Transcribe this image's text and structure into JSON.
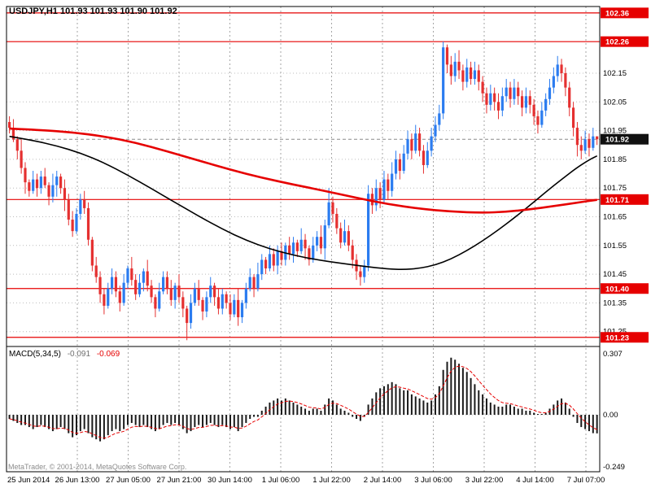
{
  "header": {
    "symbol_info": "USDJPY,H1 101.93 101.93 101.90 101.92"
  },
  "macd_header": {
    "label": "MACD(5,34,5)",
    "main_value": "-0.091",
    "signal_value": "-0.069"
  },
  "footer": {
    "copyright": "MetaTrader, © 2001-2014, MetaQuotes Software Corp."
  },
  "colors": {
    "bull": "#2b7cf0",
    "bear": "#e53030",
    "level_line": "#e60000",
    "ma_red": "#e60000",
    "ma_black": "#000000",
    "signal": "#e60000",
    "histogram": "#1a1a1a",
    "current_price_box": "#111111",
    "grid": "#a6a6a6"
  },
  "chart_data": {
    "type": "candlestick",
    "symbol": "USDJPY",
    "timeframe": "H1",
    "title": "USDJPY,H1",
    "price_axis": {
      "ticks": [
        "102.15",
        "102.05",
        "101.95",
        "101.85",
        "101.75",
        "101.65",
        "101.55",
        "101.45",
        "101.35",
        "101.25"
      ],
      "min": 101.2,
      "max": 102.38
    },
    "levels": [
      "102.36",
      "102.26",
      "101.71",
      "101.40",
      "101.23"
    ],
    "current_price": "101.92",
    "time_axis": [
      "25 Jun 2014",
      "26 Jun 13:00",
      "27 Jun 05:00",
      "27 Jun 21:00",
      "30 Jun 14:00",
      "1 Jul 06:00",
      "1 Jul 22:00",
      "2 Jul 14:00",
      "3 Jul 06:00",
      "3 Jul 22:00",
      "4 Jul 14:00",
      "7 Jul 07:00"
    ],
    "candles": [
      [
        101.98,
        102.0,
        101.94,
        101.96
      ],
      [
        101.96,
        101.99,
        101.91,
        101.92
      ],
      [
        101.92,
        101.93,
        101.85,
        101.88
      ],
      [
        101.88,
        101.92,
        101.8,
        101.82
      ],
      [
        101.82,
        101.84,
        101.73,
        101.77
      ],
      [
        101.77,
        101.78,
        101.72,
        101.74
      ],
      [
        101.74,
        101.81,
        101.73,
        101.78
      ],
      [
        101.78,
        101.8,
        101.72,
        101.75
      ],
      [
        101.75,
        101.81,
        101.73,
        101.79
      ],
      [
        101.79,
        101.82,
        101.75,
        101.76
      ],
      [
        101.76,
        101.77,
        101.69,
        101.72
      ],
      [
        101.72,
        101.8,
        101.7,
        101.76
      ],
      [
        101.76,
        101.81,
        101.72,
        101.79
      ],
      [
        101.79,
        101.8,
        101.73,
        101.75
      ],
      [
        101.75,
        101.78,
        101.67,
        101.71
      ],
      [
        101.71,
        101.73,
        101.62,
        101.64
      ],
      [
        101.64,
        101.67,
        101.58,
        101.6
      ],
      [
        101.6,
        101.68,
        101.59,
        101.66
      ],
      [
        101.66,
        101.73,
        101.64,
        101.71
      ],
      [
        101.71,
        101.74,
        101.66,
        101.68
      ],
      [
        101.68,
        101.7,
        101.55,
        101.57
      ],
      [
        101.57,
        101.58,
        101.46,
        101.48
      ],
      [
        101.48,
        101.51,
        101.42,
        101.44
      ],
      [
        101.44,
        101.46,
        101.35,
        101.38
      ],
      [
        101.38,
        101.4,
        101.31,
        101.34
      ],
      [
        101.34,
        101.42,
        101.33,
        101.4
      ],
      [
        101.4,
        101.47,
        101.38,
        101.44
      ],
      [
        101.44,
        101.46,
        101.37,
        101.39
      ],
      [
        101.39,
        101.41,
        101.32,
        101.35
      ],
      [
        101.35,
        101.45,
        101.34,
        101.42
      ],
      [
        101.42,
        101.48,
        101.4,
        101.47
      ],
      [
        101.47,
        101.51,
        101.41,
        101.43
      ],
      [
        101.43,
        101.45,
        101.36,
        101.38
      ],
      [
        101.38,
        101.45,
        101.37,
        101.42
      ],
      [
        101.42,
        101.47,
        101.39,
        101.46
      ],
      [
        101.46,
        101.5,
        101.39,
        101.41
      ],
      [
        101.41,
        101.43,
        101.35,
        101.37
      ],
      [
        101.37,
        101.38,
        101.3,
        101.33
      ],
      [
        101.33,
        101.42,
        101.32,
        101.39
      ],
      [
        101.39,
        101.46,
        101.38,
        101.44
      ],
      [
        101.44,
        101.46,
        101.38,
        101.4
      ],
      [
        101.4,
        101.43,
        101.34,
        101.36
      ],
      [
        101.36,
        101.42,
        101.33,
        101.41
      ],
      [
        101.41,
        101.45,
        101.35,
        101.37
      ],
      [
        101.37,
        101.39,
        101.3,
        101.33
      ],
      [
        101.33,
        101.34,
        101.22,
        101.28
      ],
      [
        101.28,
        101.38,
        101.26,
        101.35
      ],
      [
        101.35,
        101.42,
        101.34,
        101.4
      ],
      [
        101.4,
        101.43,
        101.34,
        101.36
      ],
      [
        101.36,
        101.37,
        101.29,
        101.32
      ],
      [
        101.32,
        101.39,
        101.3,
        101.37
      ],
      [
        101.37,
        101.44,
        101.35,
        101.41
      ],
      [
        101.41,
        101.42,
        101.34,
        101.37
      ],
      [
        101.37,
        101.4,
        101.31,
        101.33
      ],
      [
        101.33,
        101.4,
        101.31,
        101.38
      ],
      [
        101.38,
        101.39,
        101.33,
        101.35
      ],
      [
        101.35,
        101.38,
        101.29,
        101.31
      ],
      [
        101.31,
        101.38,
        101.3,
        101.36
      ],
      [
        101.36,
        101.4,
        101.27,
        101.3
      ],
      [
        101.3,
        101.36,
        101.28,
        101.35
      ],
      [
        101.35,
        101.42,
        101.33,
        101.4
      ],
      [
        101.4,
        101.47,
        101.39,
        101.44
      ],
      [
        101.44,
        101.45,
        101.37,
        101.4
      ],
      [
        101.4,
        101.49,
        101.39,
        101.45
      ],
      [
        101.45,
        101.52,
        101.43,
        101.5
      ],
      [
        101.5,
        101.51,
        101.45,
        101.47
      ],
      [
        101.47,
        101.55,
        101.46,
        101.52
      ],
      [
        101.52,
        101.54,
        101.46,
        101.48
      ],
      [
        101.48,
        101.55,
        101.45,
        101.53
      ],
      [
        101.53,
        101.56,
        101.48,
        101.5
      ],
      [
        101.5,
        101.56,
        101.48,
        101.55
      ],
      [
        101.55,
        101.58,
        101.5,
        101.52
      ],
      [
        101.52,
        101.58,
        101.49,
        101.56
      ],
      [
        101.56,
        101.57,
        101.51,
        101.53
      ],
      [
        101.53,
        101.61,
        101.52,
        101.57
      ],
      [
        101.57,
        101.59,
        101.5,
        101.54
      ],
      [
        101.54,
        101.55,
        101.48,
        101.5
      ],
      [
        101.5,
        101.58,
        101.49,
        101.55
      ],
      [
        101.55,
        101.6,
        101.53,
        101.58
      ],
      [
        101.58,
        101.62,
        101.52,
        101.54
      ],
      [
        101.54,
        101.64,
        101.5,
        101.62
      ],
      [
        101.62,
        101.75,
        101.61,
        101.7
      ],
      [
        101.7,
        101.72,
        101.63,
        101.66
      ],
      [
        101.66,
        101.68,
        101.59,
        101.61
      ],
      [
        101.61,
        101.63,
        101.54,
        101.56
      ],
      [
        101.56,
        101.64,
        101.55,
        101.6
      ],
      [
        101.6,
        101.62,
        101.53,
        101.55
      ],
      [
        101.55,
        101.57,
        101.47,
        101.5
      ],
      [
        101.5,
        101.52,
        101.43,
        101.46
      ],
      [
        101.46,
        101.48,
        101.41,
        101.44
      ],
      [
        101.44,
        101.5,
        101.42,
        101.48
      ],
      [
        101.48,
        101.76,
        101.46,
        101.73
      ],
      [
        101.73,
        101.75,
        101.66,
        101.69
      ],
      [
        101.69,
        101.78,
        101.67,
        101.75
      ],
      [
        101.75,
        101.77,
        101.68,
        101.71
      ],
      [
        101.71,
        101.81,
        101.7,
        101.78
      ],
      [
        101.78,
        101.8,
        101.71,
        101.74
      ],
      [
        101.74,
        101.84,
        101.72,
        101.8
      ],
      [
        101.8,
        101.88,
        101.78,
        101.85
      ],
      [
        101.85,
        101.87,
        101.78,
        101.81
      ],
      [
        101.81,
        101.9,
        101.8,
        101.87
      ],
      [
        101.87,
        101.95,
        101.85,
        101.92
      ],
      [
        101.92,
        101.94,
        101.85,
        101.88
      ],
      [
        101.88,
        101.97,
        101.87,
        101.94
      ],
      [
        101.94,
        101.96,
        101.86,
        101.88
      ],
      [
        101.88,
        101.9,
        101.8,
        101.83
      ],
      [
        101.83,
        101.91,
        101.82,
        101.88
      ],
      [
        101.88,
        101.96,
        101.86,
        101.93
      ],
      [
        101.93,
        102.0,
        101.91,
        101.97
      ],
      [
        101.97,
        102.04,
        101.95,
        102.01
      ],
      [
        102.01,
        102.26,
        101.99,
        102.24
      ],
      [
        102.24,
        102.25,
        102.15,
        102.18
      ],
      [
        102.18,
        102.21,
        102.11,
        102.14
      ],
      [
        102.14,
        102.22,
        102.12,
        102.19
      ],
      [
        102.19,
        102.23,
        102.13,
        102.16
      ],
      [
        102.16,
        102.18,
        102.09,
        102.12
      ],
      [
        102.12,
        102.2,
        102.1,
        102.17
      ],
      [
        102.17,
        102.19,
        102.11,
        102.13
      ],
      [
        102.13,
        102.19,
        102.11,
        102.16
      ],
      [
        102.16,
        102.18,
        102.09,
        102.12
      ],
      [
        102.12,
        102.14,
        102.05,
        102.08
      ],
      [
        102.08,
        102.1,
        102.01,
        102.04
      ],
      [
        102.04,
        102.11,
        102.02,
        102.08
      ],
      [
        102.08,
        102.1,
        102.02,
        102.05
      ],
      [
        102.05,
        102.08,
        101.99,
        102.02
      ],
      [
        102.02,
        102.1,
        102.0,
        102.07
      ],
      [
        102.07,
        102.13,
        102.05,
        102.1
      ],
      [
        102.1,
        102.12,
        102.03,
        102.06
      ],
      [
        102.06,
        102.13,
        102.04,
        102.1
      ],
      [
        102.1,
        102.12,
        102.04,
        102.07
      ],
      [
        102.07,
        102.09,
        102.0,
        102.03
      ],
      [
        102.03,
        102.1,
        102.01,
        102.07
      ],
      [
        102.07,
        102.09,
        102.01,
        102.04
      ],
      [
        102.04,
        102.06,
        101.97,
        102.0
      ],
      [
        102.0,
        102.02,
        101.94,
        101.97
      ],
      [
        101.97,
        102.05,
        101.96,
        102.02
      ],
      [
        102.02,
        102.08,
        102.0,
        102.06
      ],
      [
        102.06,
        102.13,
        102.04,
        102.1
      ],
      [
        102.1,
        102.17,
        102.08,
        102.14
      ],
      [
        102.14,
        102.21,
        102.12,
        102.18
      ],
      [
        102.18,
        102.2,
        102.12,
        102.15
      ],
      [
        102.15,
        102.17,
        102.07,
        102.1
      ],
      [
        102.1,
        102.12,
        102.0,
        102.03
      ],
      [
        102.03,
        102.05,
        101.93,
        101.96
      ],
      [
        101.96,
        101.98,
        101.86,
        101.9
      ],
      [
        101.9,
        101.93,
        101.85,
        101.88
      ],
      [
        101.88,
        101.95,
        101.87,
        101.92
      ],
      [
        101.92,
        101.94,
        101.86,
        101.89
      ],
      [
        101.89,
        101.96,
        101.88,
        101.93
      ],
      [
        101.93,
        101.93,
        101.9,
        101.92
      ]
    ],
    "ma_black": [
      [
        0,
        101.93
      ],
      [
        6,
        101.916
      ],
      [
        12,
        101.897
      ],
      [
        18,
        101.872
      ],
      [
        24,
        101.838
      ],
      [
        30,
        101.795
      ],
      [
        36,
        101.748
      ],
      [
        42,
        101.7
      ],
      [
        48,
        101.652
      ],
      [
        54,
        101.607
      ],
      [
        60,
        101.568
      ],
      [
        66,
        101.538
      ],
      [
        72,
        101.516
      ],
      [
        78,
        101.5
      ],
      [
        84,
        101.488
      ],
      [
        90,
        101.477
      ],
      [
        96,
        101.468
      ],
      [
        100,
        101.466
      ],
      [
        104,
        101.47
      ],
      [
        108,
        101.482
      ],
      [
        112,
        101.503
      ],
      [
        116,
        101.532
      ],
      [
        120,
        101.566
      ],
      [
        124,
        101.604
      ],
      [
        128,
        101.646
      ],
      [
        132,
        101.69
      ],
      [
        136,
        101.736
      ],
      [
        140,
        101.78
      ],
      [
        144,
        101.822
      ],
      [
        147,
        101.848
      ],
      [
        149,
        101.862
      ]
    ],
    "ma_red": [
      [
        0,
        101.957
      ],
      [
        8,
        101.952
      ],
      [
        16,
        101.944
      ],
      [
        24,
        101.93
      ],
      [
        32,
        101.908
      ],
      [
        40,
        101.878
      ],
      [
        48,
        101.846
      ],
      [
        56,
        101.814
      ],
      [
        64,
        101.786
      ],
      [
        72,
        101.762
      ],
      [
        80,
        101.74
      ],
      [
        88,
        101.716
      ],
      [
        96,
        101.694
      ],
      [
        104,
        101.678
      ],
      [
        112,
        101.668
      ],
      [
        120,
        101.664
      ],
      [
        126,
        101.667
      ],
      [
        132,
        101.676
      ],
      [
        138,
        101.687
      ],
      [
        144,
        101.699
      ],
      [
        149,
        101.709
      ]
    ],
    "macd": {
      "name": "MACD(5,34,5)",
      "axis_labels": {
        "top": "0.307",
        "zero": "0.00",
        "bottom": "-0.249"
      },
      "values": [
        -0.02,
        -0.03,
        -0.04,
        -0.05,
        -0.05,
        -0.06,
        -0.07,
        -0.06,
        -0.05,
        -0.06,
        -0.07,
        -0.08,
        -0.07,
        -0.06,
        -0.07,
        -0.09,
        -0.11,
        -0.1,
        -0.08,
        -0.07,
        -0.09,
        -0.11,
        -0.12,
        -0.13,
        -0.12,
        -0.1,
        -0.08,
        -0.07,
        -0.08,
        -0.07,
        -0.05,
        -0.04,
        -0.05,
        -0.06,
        -0.05,
        -0.06,
        -0.07,
        -0.08,
        -0.07,
        -0.05,
        -0.04,
        -0.05,
        -0.04,
        -0.05,
        -0.07,
        -0.09,
        -0.08,
        -0.06,
        -0.05,
        -0.06,
        -0.05,
        -0.04,
        -0.05,
        -0.06,
        -0.05,
        -0.06,
        -0.07,
        -0.06,
        -0.08,
        -0.06,
        -0.04,
        -0.02,
        -0.01,
        -0.01,
        0.02,
        0.04,
        0.06,
        0.07,
        0.08,
        0.07,
        0.08,
        0.07,
        0.06,
        0.05,
        0.04,
        0.03,
        0.02,
        0.03,
        0.03,
        0.02,
        0.05,
        0.08,
        0.07,
        0.05,
        0.03,
        0.02,
        0.01,
        -0.01,
        -0.02,
        -0.03,
        -0.01,
        0.05,
        0.08,
        0.11,
        0.13,
        0.14,
        0.15,
        0.16,
        0.15,
        0.13,
        0.12,
        0.12,
        0.1,
        0.09,
        0.08,
        0.07,
        0.06,
        0.07,
        0.1,
        0.14,
        0.22,
        0.26,
        0.28,
        0.27,
        0.25,
        0.23,
        0.21,
        0.18,
        0.15,
        0.12,
        0.1,
        0.08,
        0.06,
        0.05,
        0.04,
        0.04,
        0.05,
        0.05,
        0.04,
        0.03,
        0.03,
        0.02,
        0.02,
        0.01,
        0.0,
        0.0,
        0.01,
        0.03,
        0.05,
        0.07,
        0.08,
        0.06,
        0.03,
        -0.01,
        -0.04,
        -0.06,
        -0.07,
        -0.08,
        -0.09,
        -0.091
      ]
    }
  }
}
